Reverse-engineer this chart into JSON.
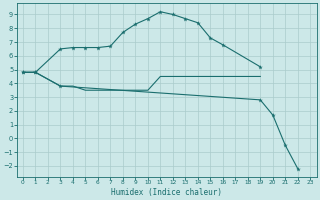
{
  "xlabel": "Humidex (Indice chaleur)",
  "xlim": [
    -0.5,
    23.5
  ],
  "ylim": [
    -2.8,
    9.8
  ],
  "yticks": [
    -2,
    -1,
    0,
    1,
    2,
    3,
    4,
    5,
    6,
    7,
    8,
    9
  ],
  "xticks": [
    0,
    1,
    2,
    3,
    4,
    5,
    6,
    7,
    8,
    9,
    10,
    11,
    12,
    13,
    14,
    15,
    16,
    17,
    18,
    19,
    20,
    21,
    22,
    23
  ],
  "bg_color": "#cce8e8",
  "grid_color": "#aacccc",
  "line_color": "#1a6e6e",
  "series_a": {
    "x": [
      0,
      1,
      3,
      4,
      5,
      6,
      7,
      8,
      9,
      10,
      11,
      12,
      13,
      14,
      15,
      16,
      19
    ],
    "y": [
      4.8,
      4.8,
      6.5,
      6.6,
      6.6,
      6.6,
      6.7,
      7.7,
      8.3,
      8.7,
      9.2,
      9.0,
      8.7,
      8.4,
      7.3,
      6.8,
      5.2
    ]
  },
  "series_b": {
    "x": [
      0,
      1,
      3,
      4,
      5,
      6,
      7,
      8,
      9,
      10,
      11,
      12,
      13,
      14,
      15,
      16,
      17,
      18,
      19
    ],
    "y": [
      4.8,
      4.8,
      3.8,
      3.8,
      3.5,
      3.5,
      3.5,
      3.5,
      3.5,
      3.5,
      4.5,
      4.5,
      4.5,
      4.5,
      4.5,
      4.5,
      4.5,
      4.5,
      4.5
    ]
  },
  "series_c": {
    "x": [
      0,
      1,
      3,
      19,
      20,
      21,
      22
    ],
    "y": [
      4.8,
      4.8,
      3.8,
      2.8,
      1.7,
      -0.5,
      -2.2
    ]
  }
}
